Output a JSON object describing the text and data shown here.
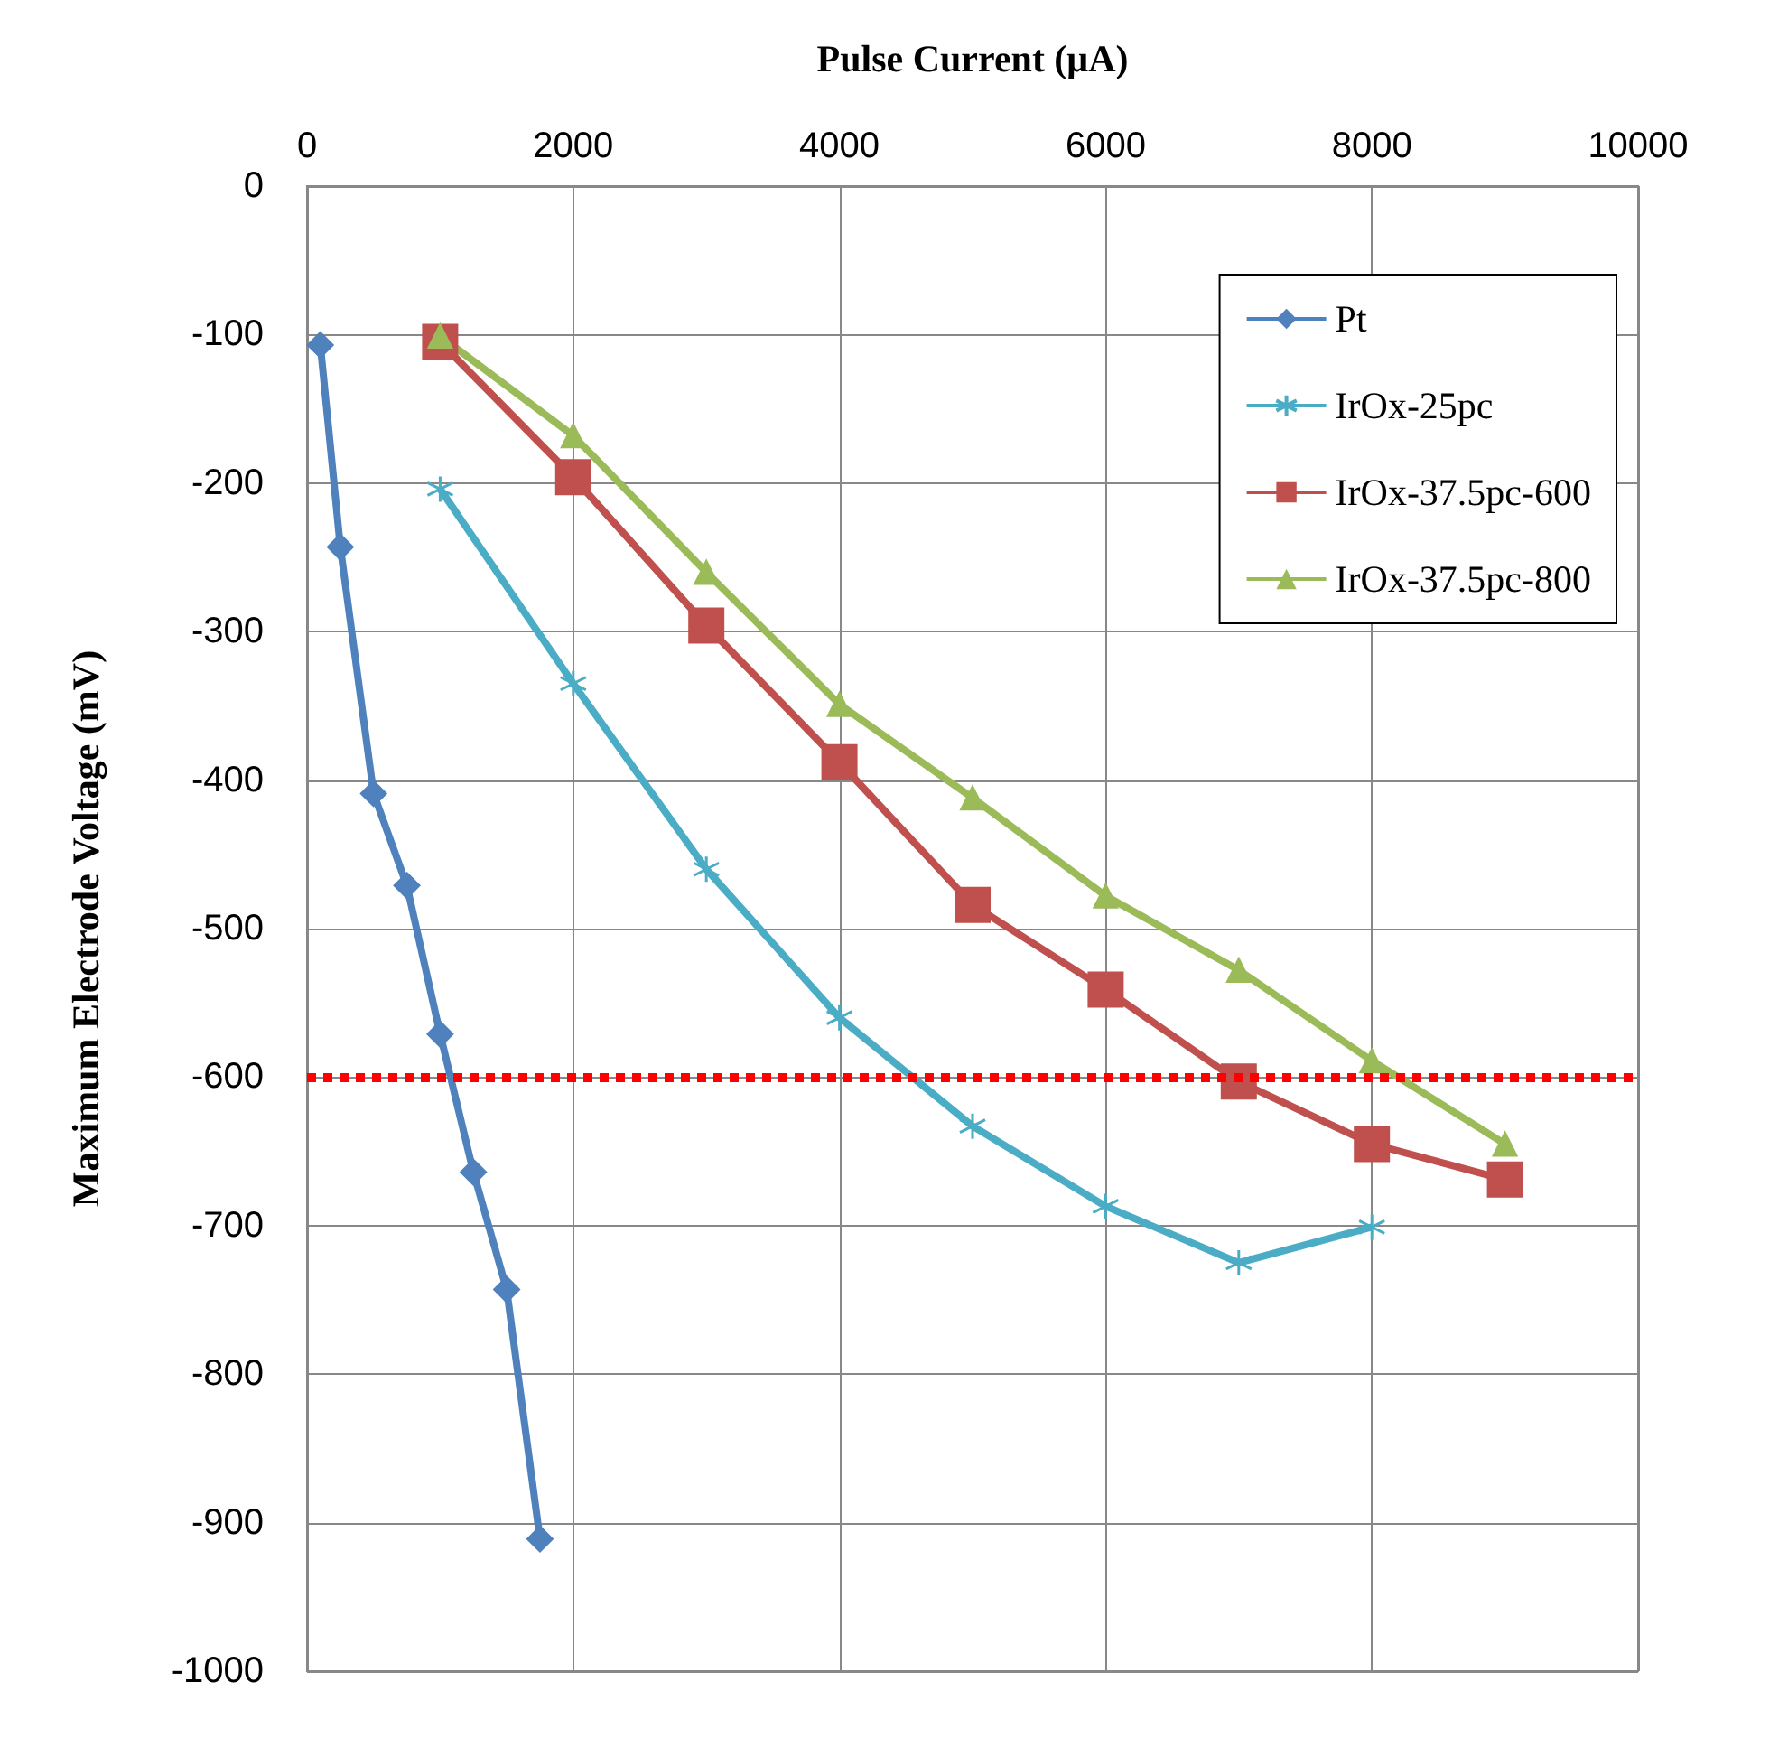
{
  "chart_data": {
    "type": "line",
    "xlabel": "Pulse Current (μA)",
    "ylabel": "Maximum Electrode Voltage (mV)",
    "xlim": [
      0,
      10000
    ],
    "xticks": [
      0,
      2000,
      4000,
      6000,
      8000,
      10000
    ],
    "ylim": [
      -1000,
      0
    ],
    "yticks": [
      -1000,
      -900,
      -800,
      -700,
      -600,
      -500,
      -400,
      -300,
      -200,
      -100,
      0
    ],
    "grid": true,
    "legend": "top right",
    "line_style": "solid",
    "series": [
      {
        "name": "Pt",
        "color": "#4f81bd",
        "marker": "diamond",
        "x": [
          100,
          250,
          500,
          750,
          1000,
          1250,
          1500,
          1750
        ],
        "values": [
          -107,
          -243,
          -409,
          -471,
          -571,
          -664,
          -743,
          -911
        ]
      },
      {
        "name": "IrOx-25pc",
        "color": "#4bacc6",
        "marker": "cross",
        "x": [
          1000,
          2000,
          3000,
          4000,
          5000,
          6000,
          7000,
          8000
        ],
        "values": [
          -204,
          -335,
          -460,
          -560,
          -633,
          -687,
          -725,
          -701
        ]
      },
      {
        "name": "IrOx-37.5pc-600",
        "color": "#c0504d",
        "marker": "square",
        "x": [
          1000,
          2000,
          3000,
          4000,
          5000,
          6000,
          7000,
          8000,
          9000
        ],
        "values": [
          -105,
          -196,
          -296,
          -388,
          -484,
          -541,
          -603,
          -645,
          -669
        ]
      },
      {
        "name": "IrOx-37.5pc-800",
        "color": "#9bbb59",
        "marker": "triangle",
        "x": [
          1000,
          2000,
          3000,
          4000,
          5000,
          6000,
          7000,
          8000,
          9000
        ],
        "values": [
          -101,
          -168,
          -260,
          -349,
          -412,
          -478,
          -528,
          -589,
          -645
        ]
      }
    ],
    "ref_lines": [
      {
        "axis": "y",
        "value": -600,
        "label": null,
        "color": "#ff0000",
        "line_style": "dotted"
      }
    ]
  }
}
